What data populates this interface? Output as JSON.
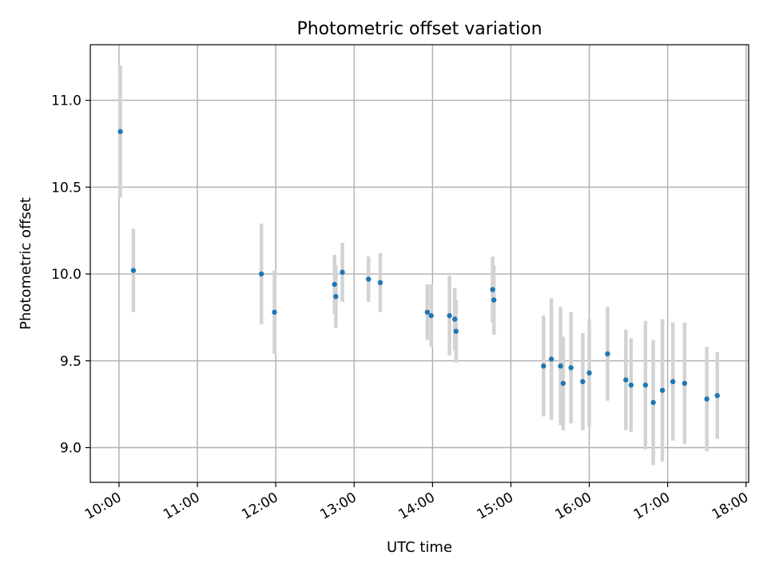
{
  "chart_data": {
    "type": "scatter",
    "title": "Photometric offset variation",
    "xlabel": "UTC time",
    "ylabel": "Photometric offset",
    "xlim": [
      "09:38",
      "18:02"
    ],
    "ylim": [
      8.8,
      11.32
    ],
    "x_ticks": [
      "10:00",
      "11:00",
      "12:00",
      "13:00",
      "14:00",
      "15:00",
      "16:00",
      "17:00",
      "18:00"
    ],
    "y_ticks": [
      "9.0",
      "9.5",
      "10.0",
      "10.5",
      "11.0"
    ],
    "grid": true,
    "marker_color": "#1f77b4",
    "errorbar_color": "#d3d3d3",
    "points": [
      {
        "time": "10:01",
        "y": 10.82,
        "err": 0.38
      },
      {
        "time": "10:11",
        "y": 10.02,
        "err": 0.24
      },
      {
        "time": "11:49",
        "y": 10.0,
        "err": 0.29
      },
      {
        "time": "11:59",
        "y": 9.78,
        "err": 0.24
      },
      {
        "time": "12:45",
        "y": 9.94,
        "err": 0.17
      },
      {
        "time": "12:46",
        "y": 9.87,
        "err": 0.18
      },
      {
        "time": "12:51",
        "y": 10.01,
        "err": 0.17
      },
      {
        "time": "13:11",
        "y": 9.97,
        "err": 0.13
      },
      {
        "time": "13:20",
        "y": 9.95,
        "err": 0.17
      },
      {
        "time": "13:56",
        "y": 9.78,
        "err": 0.16
      },
      {
        "time": "13:59",
        "y": 9.76,
        "err": 0.18
      },
      {
        "time": "14:13",
        "y": 9.76,
        "err": 0.23
      },
      {
        "time": "14:17",
        "y": 9.74,
        "err": 0.18
      },
      {
        "time": "14:18",
        "y": 9.67,
        "err": 0.18
      },
      {
        "time": "14:46",
        "y": 9.91,
        "err": 0.19
      },
      {
        "time": "14:47",
        "y": 9.85,
        "err": 0.2
      },
      {
        "time": "15:25",
        "y": 9.47,
        "err": 0.29
      },
      {
        "time": "15:31",
        "y": 9.51,
        "err": 0.35
      },
      {
        "time": "15:38",
        "y": 9.47,
        "err": 0.34
      },
      {
        "time": "15:40",
        "y": 9.37,
        "err": 0.27
      },
      {
        "time": "15:46",
        "y": 9.46,
        "err": 0.32
      },
      {
        "time": "15:55",
        "y": 9.38,
        "err": 0.28
      },
      {
        "time": "16:00",
        "y": 9.43,
        "err": 0.31
      },
      {
        "time": "16:14",
        "y": 9.54,
        "err": 0.27
      },
      {
        "time": "16:28",
        "y": 9.39,
        "err": 0.29
      },
      {
        "time": "16:32",
        "y": 9.36,
        "err": 0.27
      },
      {
        "time": "16:43",
        "y": 9.36,
        "err": 0.37
      },
      {
        "time": "16:49",
        "y": 9.26,
        "err": 0.36
      },
      {
        "time": "16:56",
        "y": 9.33,
        "err": 0.41
      },
      {
        "time": "17:04",
        "y": 9.38,
        "err": 0.34
      },
      {
        "time": "17:13",
        "y": 9.37,
        "err": 0.35
      },
      {
        "time": "17:30",
        "y": 9.28,
        "err": 0.3
      },
      {
        "time": "17:38",
        "y": 9.3,
        "err": 0.25
      }
    ]
  }
}
